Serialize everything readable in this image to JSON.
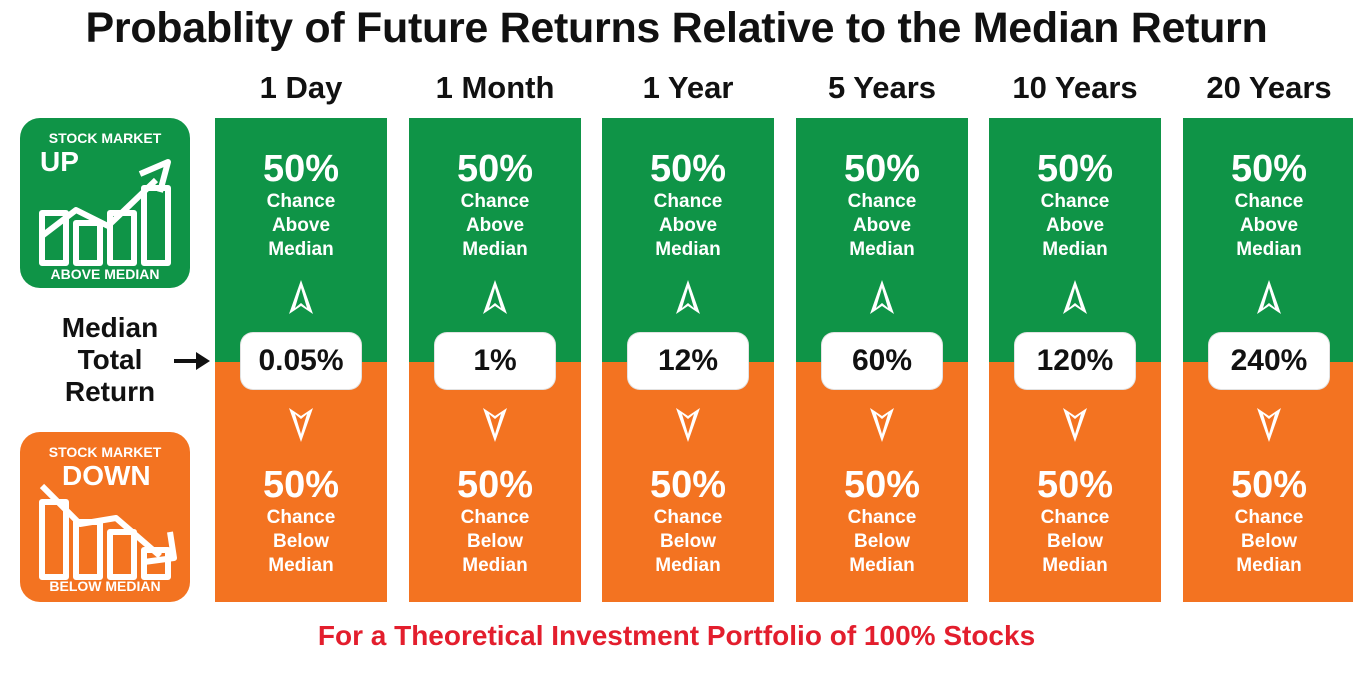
{
  "title": "Probablity of Future Returns Relative to the Median Return",
  "footer": "For a Theoretical Investment Portfolio of 100% Stocks",
  "median_label": [
    "Median",
    "Total",
    "Return"
  ],
  "badge_up": {
    "top": "STOCK MARKET",
    "word": "UP",
    "bottom": "ABOVE MEDIAN",
    "color": "#0f9447"
  },
  "badge_down": {
    "top": "STOCK MARKET",
    "word": "DOWN",
    "bottom": "BELOW MEDIAN",
    "color": "#f37321"
  },
  "colors": {
    "up": "#0f9447",
    "down": "#f37321",
    "footer": "#e31e2d"
  },
  "columns": [
    {
      "period": "1 Day",
      "median": "0.05%",
      "up_pct": "50%",
      "up_lines": [
        "Chance",
        "Above",
        "Median"
      ],
      "down_pct": "50%",
      "down_lines": [
        "Chance",
        "Below",
        "Median"
      ]
    },
    {
      "period": "1 Month",
      "median": "1%",
      "up_pct": "50%",
      "up_lines": [
        "Chance",
        "Above",
        "Median"
      ],
      "down_pct": "50%",
      "down_lines": [
        "Chance",
        "Below",
        "Median"
      ]
    },
    {
      "period": "1 Year",
      "median": "12%",
      "up_pct": "50%",
      "up_lines": [
        "Chance",
        "Above",
        "Median"
      ],
      "down_pct": "50%",
      "down_lines": [
        "Chance",
        "Below",
        "Median"
      ]
    },
    {
      "period": "5 Years",
      "median": "60%",
      "up_pct": "50%",
      "up_lines": [
        "Chance",
        "Above",
        "Median"
      ],
      "down_pct": "50%",
      "down_lines": [
        "Chance",
        "Below",
        "Median"
      ]
    },
    {
      "period": "10 Years",
      "median": "120%",
      "up_pct": "50%",
      "up_lines": [
        "Chance",
        "Above",
        "Median"
      ],
      "down_pct": "50%",
      "down_lines": [
        "Chance",
        "Below",
        "Median"
      ]
    },
    {
      "period": "20 Years",
      "median": "240%",
      "up_pct": "50%",
      "up_lines": [
        "Chance",
        "Above",
        "Median"
      ],
      "down_pct": "50%",
      "down_lines": [
        "Chance",
        "Below",
        "Median"
      ]
    }
  ]
}
